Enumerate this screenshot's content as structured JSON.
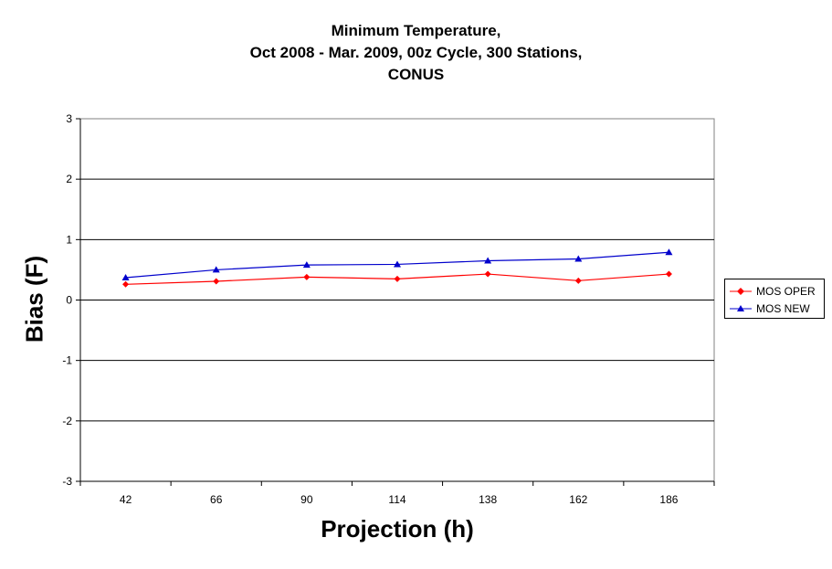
{
  "chart_data": {
    "type": "line",
    "title_lines": [
      "Minimum Temperature,",
      "Oct 2008 - Mar. 2009, 00z Cycle, 300 Stations,",
      "CONUS"
    ],
    "xlabel": "Projection (h)",
    "ylabel": "Bias (F)",
    "categories": [
      "42",
      "66",
      "90",
      "114",
      "138",
      "162",
      "186"
    ],
    "ylim": [
      -3,
      3
    ],
    "yticks": [
      "3",
      "2",
      "1",
      "0",
      "-1",
      "-2",
      "-3"
    ],
    "grid": true,
    "legend_position": "right",
    "series": [
      {
        "name": "MOS OPER",
        "color": "#ff0000",
        "marker": "diamond",
        "values": [
          0.26,
          0.31,
          0.38,
          0.35,
          0.43,
          0.32,
          0.43
        ]
      },
      {
        "name": "MOS NEW",
        "color": "#0000cc",
        "marker": "triangle",
        "values": [
          0.37,
          0.5,
          0.58,
          0.59,
          0.65,
          0.68,
          0.79
        ]
      }
    ]
  }
}
